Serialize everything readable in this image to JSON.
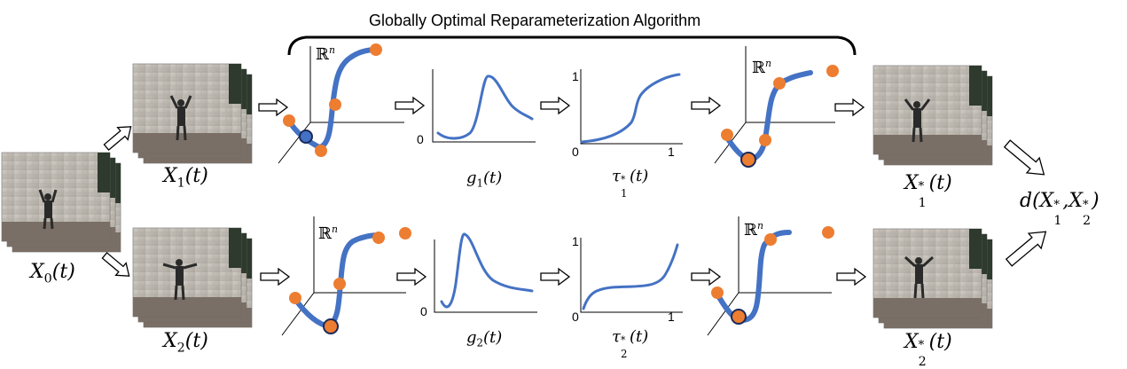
{
  "title": "Globally Optimal Reparameterization Algorithm",
  "labels": {
    "x0": "X",
    "x0_sub": "0",
    "x0_arg": "(t)",
    "x1": "X",
    "x1_sub": "1",
    "x1_arg": "(t)",
    "x2": "X",
    "x2_sub": "2",
    "x2_arg": "(t)",
    "x1star": "X",
    "x1star_sup": "*",
    "x1star_sub": "1",
    "x1star_arg": "(t)",
    "x2star": "X",
    "x2star_sup": "*",
    "x2star_sub": "2",
    "x2star_arg": "(t)",
    "g1": "g",
    "g1_sub": "1",
    "g1_arg": "(t)",
    "g2": "g",
    "g2_sub": "2",
    "g2_arg": "(t)",
    "tau1": "τ",
    "tau1_sup": "*",
    "tau1_sub": "1",
    "tau1_arg": "(t)",
    "tau2": "τ",
    "tau2_sup": "*",
    "tau2_sub": "2",
    "tau2_arg": "(t)",
    "distance": "d(X",
    "distance_sup1": "*",
    "distance_sub1": "1",
    "distance_mid": ",X",
    "distance_sup2": "*",
    "distance_sub2": "2",
    "distance_end": ")"
  },
  "space": {
    "symbol": "ℝ",
    "exponent": "n"
  },
  "ticks": {
    "zero": "0",
    "one": "1"
  },
  "colors": {
    "curve": "#4472C4",
    "point": "#ED7D31",
    "wall": "#b7b2a9",
    "ground": "#7a6f66",
    "person": "#2a2a2a"
  }
}
